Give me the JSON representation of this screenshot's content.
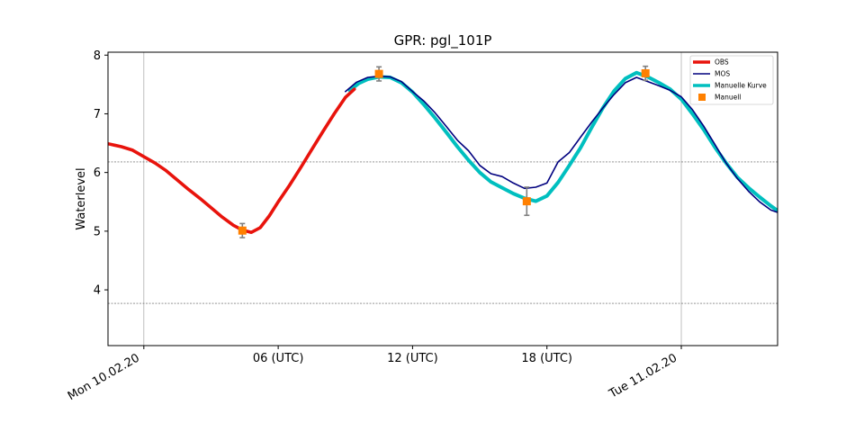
{
  "chart_data": {
    "type": "line",
    "title": "GPR: pgl_101P",
    "xlabel": "",
    "ylabel": "Waterlevel",
    "xlim": [
      -1.6,
      28.3
    ],
    "ylim": [
      3.05,
      8.05
    ],
    "x_unit": "hours after Mon 10.02.20 00:00 (UTC)",
    "yticks": [
      4,
      5,
      6,
      7,
      8
    ],
    "xticks": [
      {
        "x": 0,
        "label": "Mon 10.02.20",
        "rotated": true
      },
      {
        "x": 6,
        "label": "06 (UTC)",
        "rotated": false
      },
      {
        "x": 12,
        "label": "12 (UTC)",
        "rotated": false
      },
      {
        "x": 18,
        "label": "18 (UTC)",
        "rotated": false
      },
      {
        "x": 24,
        "label": "Tue 11.02.20",
        "rotated": true
      }
    ],
    "vertical_gridlines_x": [
      0,
      24
    ],
    "horizontal_reference_lines_y": [
      6.18,
      3.77
    ],
    "legend": {
      "position": "top-right"
    },
    "series": [
      {
        "name": "OBS",
        "kind": "line",
        "color": "#e8130c",
        "x": [
          -1.6,
          -1.0,
          -0.5,
          0,
          0.5,
          1,
          1.5,
          2,
          2.5,
          3,
          3.5,
          4,
          4.4,
          4.8,
          5.2,
          5.6,
          6,
          6.5,
          7,
          7.5,
          8,
          8.5,
          9,
          9.4
        ],
        "y": [
          6.49,
          6.44,
          6.38,
          6.27,
          6.16,
          6.03,
          5.87,
          5.71,
          5.56,
          5.4,
          5.24,
          5.1,
          5.02,
          4.98,
          5.06,
          5.26,
          5.5,
          5.78,
          6.08,
          6.39,
          6.7,
          7.0,
          7.28,
          7.42
        ]
      },
      {
        "name": "MOS",
        "kind": "line",
        "color": "#00007f",
        "x": [
          9.0,
          9.5,
          10,
          10.5,
          11,
          11.5,
          12,
          12.5,
          13,
          13.5,
          14,
          14.5,
          15,
          15.5,
          16,
          16.5,
          17,
          17.5,
          18,
          18.5,
          19,
          19.5,
          20,
          20.5,
          21,
          21.5,
          22,
          22.5,
          23,
          23.5,
          24,
          24.5,
          25,
          25.5,
          26,
          26.5,
          27,
          27.5,
          28,
          28.3
        ],
        "y": [
          7.38,
          7.54,
          7.62,
          7.64,
          7.63,
          7.55,
          7.38,
          7.22,
          7.02,
          6.79,
          6.55,
          6.37,
          6.12,
          5.98,
          5.93,
          5.82,
          5.73,
          5.75,
          5.82,
          6.18,
          6.34,
          6.6,
          6.86,
          7.1,
          7.33,
          7.53,
          7.62,
          7.55,
          7.48,
          7.4,
          7.29,
          7.07,
          6.79,
          6.48,
          6.16,
          5.9,
          5.68,
          5.5,
          5.36,
          5.32
        ]
      },
      {
        "name": "Manuelle Kurve",
        "kind": "line",
        "color": "#00bfbf",
        "x": [
          9.2,
          9.6,
          10,
          10.5,
          11,
          11.5,
          12,
          12.5,
          13,
          13.5,
          14,
          14.5,
          15,
          15.5,
          16,
          16.5,
          17,
          17.5,
          18,
          18.5,
          19,
          19.5,
          20,
          20.5,
          21,
          21.5,
          22,
          22.5,
          23,
          23.5,
          24,
          24.5,
          25,
          25.5,
          26,
          26.5,
          27,
          27.5,
          28,
          28.3
        ],
        "y": [
          7.4,
          7.52,
          7.59,
          7.63,
          7.62,
          7.53,
          7.37,
          7.16,
          6.93,
          6.69,
          6.44,
          6.21,
          6.0,
          5.84,
          5.74,
          5.64,
          5.56,
          5.51,
          5.6,
          5.83,
          6.12,
          6.42,
          6.77,
          7.1,
          7.39,
          7.6,
          7.7,
          7.63,
          7.53,
          7.42,
          7.25,
          7.0,
          6.73,
          6.43,
          6.16,
          5.92,
          5.74,
          5.58,
          5.43,
          5.35
        ]
      },
      {
        "name": "Manuell",
        "kind": "points",
        "color": "#ff8000",
        "x": [
          4.4,
          10.5,
          17.1,
          22.4
        ],
        "y": [
          5.01,
          7.68,
          5.51,
          7.69
        ],
        "yerr_low": [
          0.12,
          0.12,
          0.24,
          0.12
        ],
        "yerr_high": [
          0.12,
          0.12,
          0.24,
          0.12
        ]
      }
    ]
  }
}
